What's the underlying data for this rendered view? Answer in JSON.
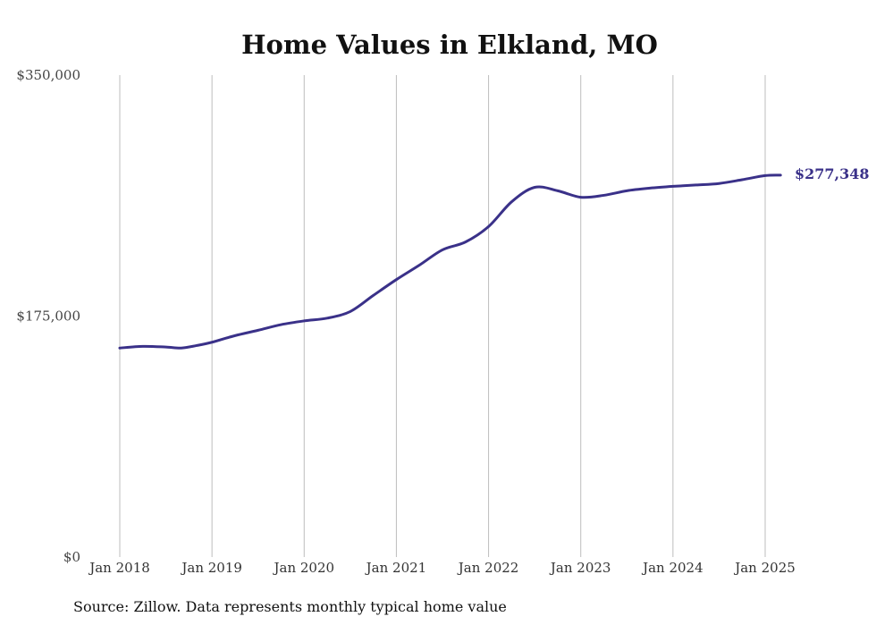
{
  "chart_data": {
    "type": "line",
    "title": "Home Values in Elkland, MO",
    "xlabel": "",
    "ylabel": "",
    "ylim": [
      0,
      350000
    ],
    "yticks": [
      0,
      175000,
      350000
    ],
    "ytick_labels": [
      "$0",
      "$175,000",
      "$350,000"
    ],
    "xticks": [
      "2018-01",
      "2019-01",
      "2020-01",
      "2021-01",
      "2022-01",
      "2023-01",
      "2024-01",
      "2025-01"
    ],
    "xtick_labels": [
      "Jan 2018",
      "Jan 2019",
      "Jan 2020",
      "Jan 2021",
      "Jan 2022",
      "Jan 2023",
      "Jan 2024",
      "Jan 2025"
    ],
    "grid": "vertical",
    "series": [
      {
        "color": "#3a3189",
        "points": [
          {
            "x": "2018-01",
            "y": 151800
          },
          {
            "x": "2018-04",
            "y": 153000
          },
          {
            "x": "2018-07",
            "y": 152500
          },
          {
            "x": "2018-09",
            "y": 151800
          },
          {
            "x": "2018-11",
            "y": 153600
          },
          {
            "x": "2019-01",
            "y": 156000
          },
          {
            "x": "2019-04",
            "y": 160800
          },
          {
            "x": "2019-07",
            "y": 164700
          },
          {
            "x": "2019-10",
            "y": 168800
          },
          {
            "x": "2020-01",
            "y": 171500
          },
          {
            "x": "2020-04",
            "y": 173500
          },
          {
            "x": "2020-07",
            "y": 178300
          },
          {
            "x": "2020-10",
            "y": 190000
          },
          {
            "x": "2021-01",
            "y": 201500
          },
          {
            "x": "2021-04",
            "y": 212000
          },
          {
            "x": "2021-07",
            "y": 223100
          },
          {
            "x": "2021-10",
            "y": 228800
          },
          {
            "x": "2022-01",
            "y": 240000
          },
          {
            "x": "2022-04",
            "y": 258000
          },
          {
            "x": "2022-07",
            "y": 268500
          },
          {
            "x": "2022-10",
            "y": 266000
          },
          {
            "x": "2023-01",
            "y": 261300
          },
          {
            "x": "2023-04",
            "y": 262700
          },
          {
            "x": "2023-07",
            "y": 266000
          },
          {
            "x": "2023-10",
            "y": 267900
          },
          {
            "x": "2024-01",
            "y": 269200
          },
          {
            "x": "2024-04",
            "y": 270200
          },
          {
            "x": "2024-07",
            "y": 271300
          },
          {
            "x": "2024-10",
            "y": 274000
          },
          {
            "x": "2025-01",
            "y": 277000
          },
          {
            "x": "2025-03",
            "y": 277348
          }
        ]
      }
    ],
    "end_label": "$277,348",
    "source_note": "Source: Zillow. Data represents monthly typical home value"
  }
}
